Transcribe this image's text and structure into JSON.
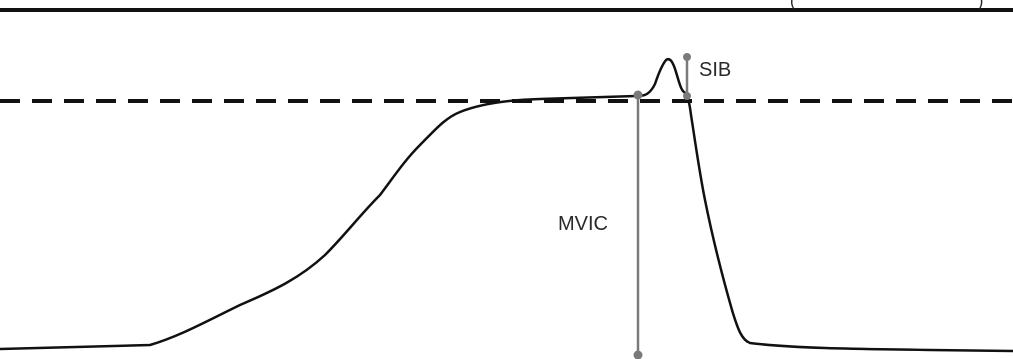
{
  "labels": {
    "sib": "SIB",
    "mvic": "MVIC",
    "top_right_paren_left": "(",
    "top_right_paren_right": ")"
  },
  "colors": {
    "trace": "#111111",
    "marker": "#7a7a7a",
    "reference": "#111111"
  }
}
